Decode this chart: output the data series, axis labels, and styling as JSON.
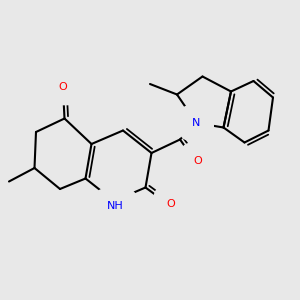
{
  "bg": "#e8e8e8",
  "bond_color": "#000000",
  "N_color": "#0000ff",
  "O_color": "#ff0000",
  "lw": 1.5,
  "fs": 8.0,
  "xlim": [
    0,
    10
  ],
  "ylim": [
    0,
    10
  ]
}
